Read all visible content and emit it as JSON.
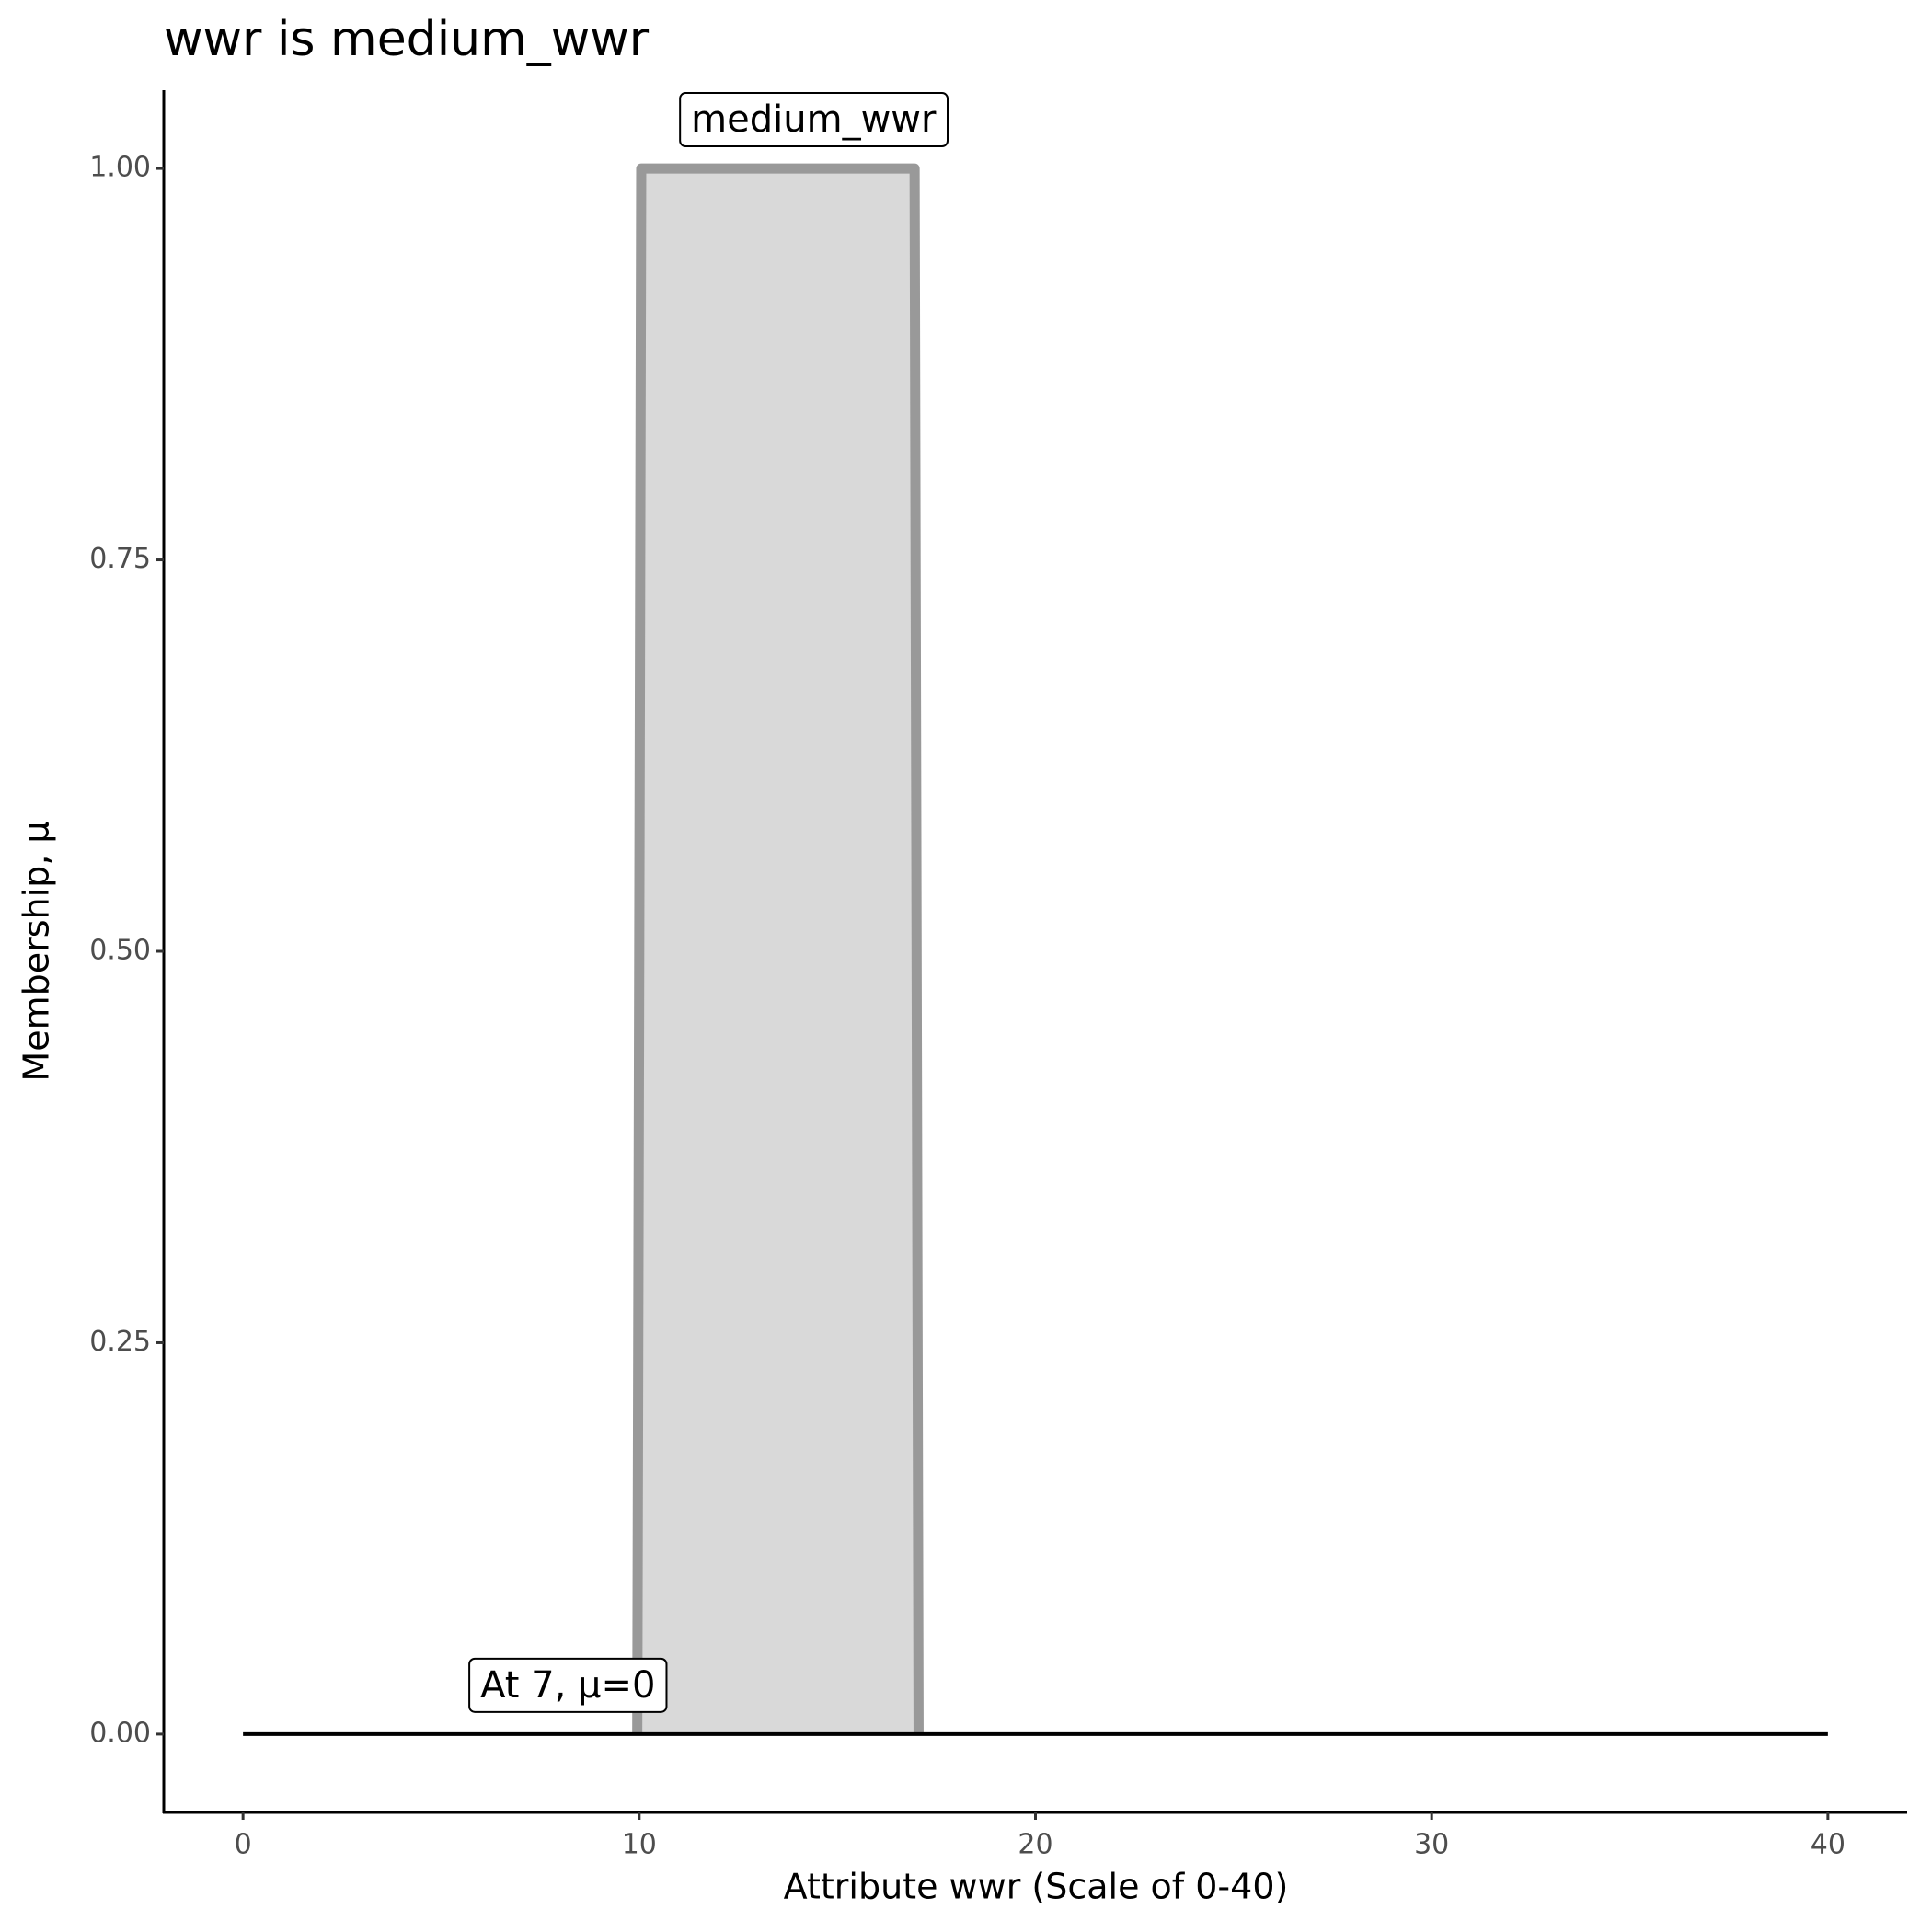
{
  "chart_data": {
    "type": "line",
    "title": "wwr is medium_wwr",
    "xlabel": "Attribute wwr (Scale of 0-40)",
    "ylabel": "Membership, μ",
    "series": [
      {
        "color": "#999999",
        "fill": "#d9d9d9",
        "x": [
          9.95,
          10.05,
          16.95,
          17.05
        ],
        "values": [
          0,
          1,
          1,
          0
        ]
      },
      {
        "color": "#000000",
        "x": [
          0,
          40
        ],
        "values": [
          0,
          0
        ]
      }
    ],
    "annotations": [
      {
        "text": "medium_wwr",
        "x": 14.4,
        "y": 1.03
      },
      {
        "text": "At 7, μ=0",
        "x": 8.2,
        "y": 0.03
      }
    ],
    "xlim": [
      -2,
      42
    ],
    "xticks": [
      0,
      10,
      20,
      30,
      40
    ],
    "ylim": [
      -0.05,
      1.05
    ],
    "yticks": [
      {
        "value": 0,
        "label": "0.00"
      },
      {
        "value": 0.25,
        "label": "0.25"
      },
      {
        "value": 0.5,
        "label": "0.50"
      },
      {
        "value": 0.75,
        "label": "0.75"
      },
      {
        "value": 1,
        "label": "1.00"
      }
    ],
    "grid": false
  }
}
